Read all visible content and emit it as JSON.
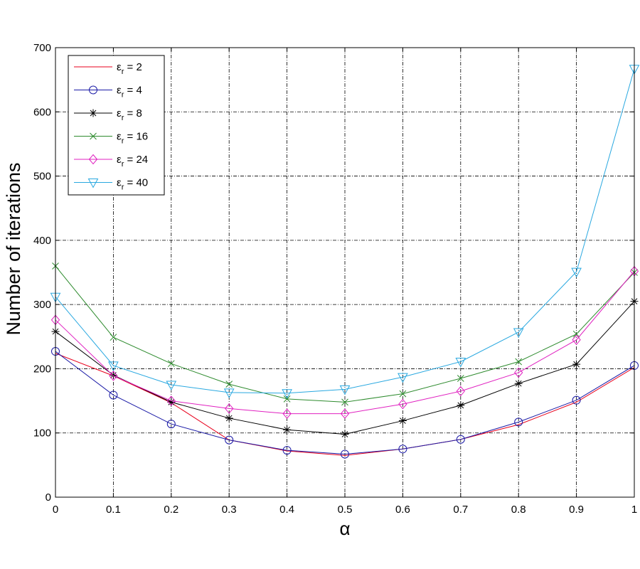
{
  "chart_data": {
    "type": "line",
    "title": "",
    "xlabel": "α",
    "ylabel": "Number of iterations",
    "xlim": [
      0,
      1
    ],
    "ylim": [
      0,
      700
    ],
    "x": [
      0,
      0.1,
      0.2,
      0.3,
      0.4,
      0.5,
      0.6,
      0.7,
      0.8,
      0.9,
      1
    ],
    "xticks": [
      "0",
      "0.1",
      "0.2",
      "0.3",
      "0.4",
      "0.5",
      "0.6",
      "0.7",
      "0.8",
      "0.9",
      "1"
    ],
    "yticks": [
      "0",
      "100",
      "200",
      "300",
      "400",
      "500",
      "600",
      "700"
    ],
    "grid": true,
    "legend_position": "top-left",
    "series": [
      {
        "name": "ε_r = 2",
        "symbol": "ε",
        "sub": "r",
        "value_text": " = 2",
        "marker": "none",
        "color": "#e8001c",
        "values": [
          224,
          189,
          147,
          89,
          72,
          65,
          75,
          90,
          113,
          148,
          202
        ]
      },
      {
        "name": "ε_r = 4",
        "symbol": "ε",
        "sub": "r",
        "value_text": " = 4",
        "marker": "circle",
        "color": "#1a1aa6",
        "values": [
          227,
          159,
          114,
          89,
          73,
          67,
          75,
          90,
          117,
          151,
          205
        ]
      },
      {
        "name": "ε_r = 8",
        "symbol": "ε",
        "sub": "r",
        "value_text": " = 8",
        "marker": "star",
        "color": "#000000",
        "values": [
          258,
          190,
          148,
          123,
          105,
          98,
          119,
          143,
          177,
          207,
          305
        ]
      },
      {
        "name": "ε_r = 16",
        "symbol": "ε",
        "sub": "r",
        "value_text": " = 16",
        "marker": "x",
        "color": "#2e8b2e",
        "values": [
          360,
          249,
          208,
          176,
          153,
          148,
          161,
          185,
          211,
          254,
          350
        ]
      },
      {
        "name": "ε_r = 24",
        "symbol": "ε",
        "sub": "r",
        "value_text": " = 24",
        "marker": "diamond",
        "color": "#e020c0",
        "values": [
          276,
          189,
          150,
          138,
          130,
          130,
          145,
          165,
          194,
          245,
          352
        ]
      },
      {
        "name": "ε_r = 40",
        "symbol": "ε",
        "sub": "r",
        "value_text": " = 40",
        "marker": "triangle-down",
        "color": "#29a8e0",
        "values": [
          312,
          205,
          175,
          163,
          162,
          168,
          187,
          211,
          257,
          351,
          667
        ]
      }
    ]
  }
}
